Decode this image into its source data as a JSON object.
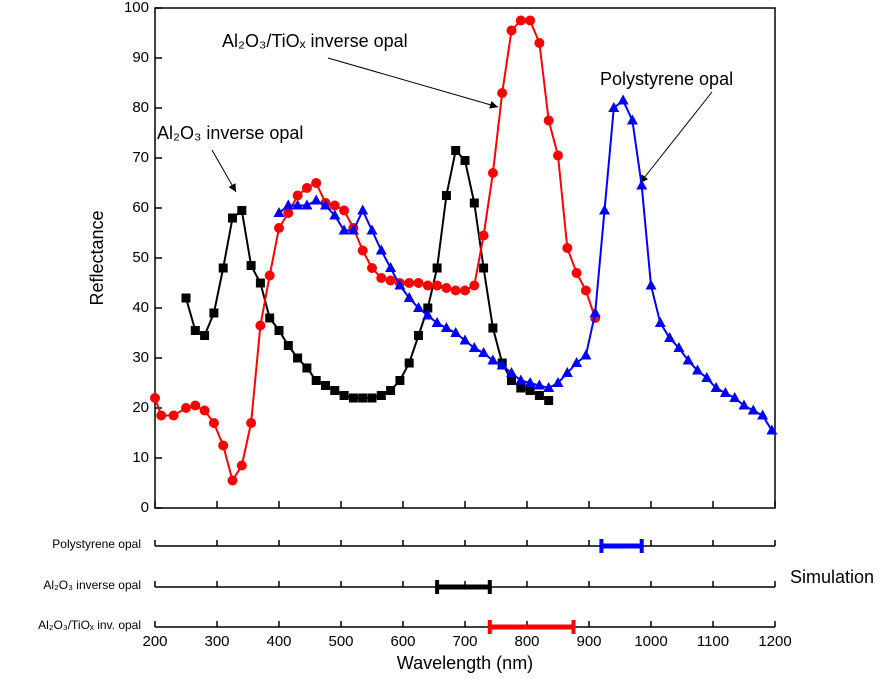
{
  "chart_data": {
    "type": "line",
    "ylabel": "Reflectance",
    "xlabel": "Wavelength (nm)",
    "xlim": [
      200,
      1200
    ],
    "xticks": [
      200,
      300,
      400,
      500,
      600,
      700,
      800,
      900,
      1000,
      1100,
      1200
    ],
    "ylim": [
      0,
      100
    ],
    "yticks": [
      0,
      10,
      20,
      30,
      40,
      50,
      60,
      70,
      80,
      90,
      100
    ],
    "series": [
      {
        "name": "Al₂O₃ inverse opal",
        "color": "#000000",
        "marker": "square",
        "x": [
          250,
          265,
          280,
          295,
          310,
          325,
          340,
          355,
          370,
          385,
          400,
          415,
          430,
          445,
          460,
          475,
          490,
          505,
          520,
          535,
          550,
          565,
          580,
          595,
          610,
          625,
          640,
          655,
          670,
          685,
          700,
          715,
          730,
          745,
          760,
          775,
          790,
          805,
          820,
          835
        ],
        "values": [
          42,
          35.5,
          34.5,
          39,
          48,
          58,
          59.5,
          48.5,
          45,
          38,
          35.5,
          32.5,
          30,
          28,
          25.5,
          24.5,
          23.5,
          22.5,
          22,
          22,
          22,
          22.5,
          23.5,
          25.5,
          29,
          34.5,
          40,
          48,
          62.5,
          71.5,
          69.5,
          61,
          48,
          36,
          29,
          25.5,
          24,
          23.5,
          22.5,
          21.5
        ]
      },
      {
        "name": "Al₂O₃/TiOₓ inverse opal",
        "color": "#ff0000",
        "marker": "circle",
        "x": [
          200,
          210,
          230,
          250,
          265,
          280,
          295,
          310,
          325,
          340,
          355,
          370,
          385,
          400,
          415,
          430,
          445,
          460,
          475,
          490,
          505,
          520,
          535,
          550,
          565,
          580,
          595,
          610,
          625,
          640,
          655,
          670,
          685,
          700,
          715,
          730,
          745,
          760,
          775,
          790,
          805,
          820,
          835,
          850,
          865,
          880,
          895,
          910
        ],
        "values": [
          22,
          18.5,
          18.5,
          20,
          20.5,
          19.5,
          17,
          12.5,
          5.5,
          8.5,
          17,
          36.5,
          46.5,
          56,
          59,
          62.5,
          64,
          65,
          61,
          60.5,
          59.5,
          56,
          51.5,
          48,
          46,
          45.5,
          45,
          45,
          45,
          44.5,
          44.5,
          44,
          43.5,
          43.5,
          44.5,
          54.5,
          67,
          83,
          95.5,
          97.5,
          97.5,
          93,
          77.5,
          70.5,
          52,
          47,
          43.5,
          38
        ]
      },
      {
        "name": "Polystyrene opal",
        "color": "#0000ff",
        "marker": "triangle",
        "x": [
          400,
          415,
          430,
          445,
          460,
          475,
          490,
          505,
          520,
          535,
          550,
          565,
          580,
          595,
          610,
          625,
          640,
          655,
          670,
          685,
          700,
          715,
          730,
          745,
          760,
          775,
          790,
          805,
          820,
          835,
          850,
          865,
          880,
          895,
          910,
          925,
          940,
          955,
          970,
          985,
          1000,
          1015,
          1030,
          1045,
          1060,
          1075,
          1090,
          1105,
          1120,
          1135,
          1150,
          1165,
          1180,
          1195
        ],
        "values": [
          59,
          60.5,
          60.5,
          60.5,
          61.5,
          60.5,
          58.5,
          55.5,
          55.5,
          59.5,
          55.5,
          51.5,
          48,
          44.5,
          42,
          40,
          38.5,
          37,
          36,
          35,
          33.5,
          32,
          31,
          29.5,
          28.5,
          27,
          25.5,
          25,
          24.5,
          24,
          25,
          27,
          29,
          30.5,
          39,
          59.5,
          80,
          81.5,
          77.5,
          64.5,
          44.5,
          37,
          34,
          32,
          29.5,
          27.5,
          26,
          24,
          23,
          22,
          20.5,
          19.5,
          18.5,
          15.5
        ]
      }
    ],
    "simulation": {
      "label": "Simulation",
      "rows": [
        {
          "name": "Polystyrene opal",
          "color": "#0000ff",
          "range": [
            920,
            985
          ]
        },
        {
          "name": "Al₂O₃ inverse opal",
          "color": "#000000",
          "range": [
            655,
            740
          ]
        },
        {
          "name": "Al₂O₃/TiOₓ inv. opal",
          "color": "#ff0000",
          "range": [
            740,
            875
          ]
        }
      ]
    }
  }
}
